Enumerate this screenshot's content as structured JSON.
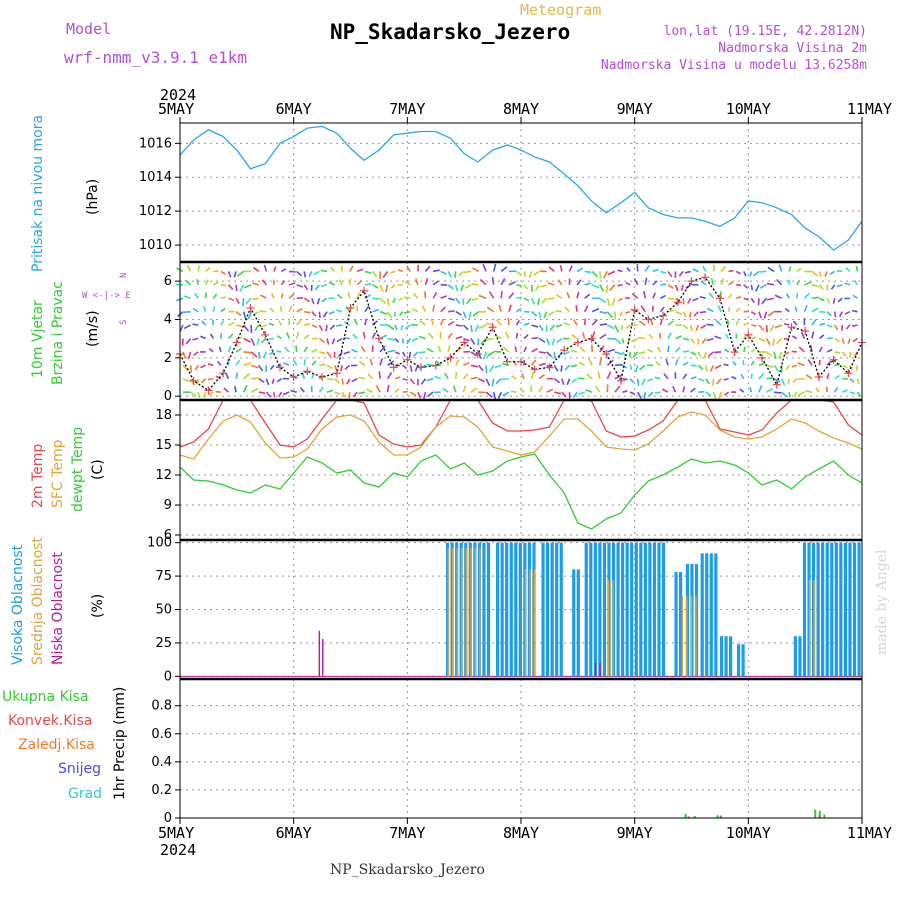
{
  "header": {
    "model_label": "Model",
    "model_name": "wrf-nmm_v3.9.1 e1km",
    "subtitle": "Meteogram",
    "title": "NP_Skadarsko_Jezero",
    "lonlat": "lon,lat (19.15E, 42.2812N)",
    "elev": "Nadmorska Visina 2m",
    "model_elev": "Nadmorska Visina u modelu 13.6258m",
    "footer": "NP_Skadarsko_Jezero",
    "watermark": "made by Angel"
  },
  "axes": {
    "year": "2024",
    "day_labels": [
      "5MAY",
      "6MAY",
      "7MAY",
      "8MAY",
      "9MAY",
      "10MAY",
      "11MAY"
    ]
  },
  "panels": {
    "pressure": {
      "label": "Pritisak na nivou mora",
      "unit": "(hPa)"
    },
    "wind": {
      "label1": "10m Vjetar",
      "label2": "Brzina i Pravac",
      "unit": "(m/s)",
      "compass": "W <-|-> E  N  S"
    },
    "temp": {
      "label1": "2m Temp",
      "label2": "SFC Temp",
      "label3": "dewpt Temp",
      "unit": "(C)"
    },
    "cloud": {
      "label1": "Visoka Oblacnost",
      "label2": "Srednja Oblacnost",
      "label3": "Niska Oblacnost",
      "unit": "(%)"
    },
    "precip": {
      "unit": "1hr Precip (mm)",
      "legend": [
        "Ukupna Kisa",
        "Konvek.Kisa",
        "Zaledj.Kisa",
        "Snijeg",
        "Grad"
      ]
    }
  },
  "colors": {
    "pressure": "#2aa8e6",
    "t2m": "#e8484a",
    "tsfc": "#e0a63a",
    "dewpt": "#33cc33",
    "high_cloud": "#1e9de6",
    "mid_cloud": "#d9a640",
    "low_cloud": "#b01c9c",
    "rain_total": "#33cc33",
    "rain_conv": "#e8484a",
    "rain_freez": "#f07a2a",
    "snow": "#4a4ae6",
    "hail": "#33cccc"
  },
  "chart_data": [
    {
      "type": "line",
      "ylabel": "(hPa)",
      "ylim": [
        1009,
        1017.2
      ],
      "yticks": [
        1010,
        1012,
        1014,
        1016
      ],
      "x_unit": "days since 5MAY 00UTC",
      "series": [
        {
          "name": "Pritisak na nivou mora",
          "x": [
            0,
            0.12,
            0.25,
            0.38,
            0.5,
            0.62,
            0.75,
            0.88,
            1.0,
            1.12,
            1.25,
            1.38,
            1.5,
            1.62,
            1.75,
            1.88,
            2.0,
            2.12,
            2.25,
            2.38,
            2.5,
            2.62,
            2.75,
            2.88,
            3.0,
            3.12,
            3.25,
            3.38,
            3.5,
            3.62,
            3.75,
            3.88,
            4.0,
            4.12,
            4.25,
            4.38,
            4.5,
            4.62,
            4.75,
            4.88,
            5.0,
            5.12,
            5.25,
            5.38,
            5.5,
            5.62,
            5.75,
            5.88,
            6.0
          ],
          "values": [
            1015.3,
            1016.2,
            1016.8,
            1016.4,
            1015.6,
            1014.5,
            1014.8,
            1016.0,
            1016.4,
            1016.9,
            1017.0,
            1016.6,
            1015.7,
            1015.0,
            1015.6,
            1016.5,
            1016.6,
            1016.7,
            1016.7,
            1016.3,
            1015.4,
            1014.9,
            1015.6,
            1015.9,
            1015.6,
            1015.2,
            1014.9,
            1014.2,
            1013.5,
            1012.6,
            1011.9,
            1012.5,
            1013.1,
            1012.2,
            1011.8,
            1011.6,
            1011.6,
            1011.4,
            1011.1,
            1011.6,
            1012.6,
            1012.5,
            1012.2,
            1011.8,
            1011.0,
            1010.5,
            1009.7,
            1010.3,
            1011.4
          ]
        }
      ]
    },
    {
      "type": "line",
      "ylabel": "(m/s)",
      "ylim": [
        -0.2,
        7
      ],
      "yticks": [
        0,
        2,
        4,
        6
      ],
      "series": [
        {
          "name": "10m Vjetar Brzina",
          "x": [
            0,
            0.12,
            0.25,
            0.38,
            0.5,
            0.62,
            0.75,
            0.88,
            1.0,
            1.12,
            1.25,
            1.38,
            1.5,
            1.62,
            1.75,
            1.88,
            2.0,
            2.12,
            2.25,
            2.38,
            2.5,
            2.62,
            2.75,
            2.88,
            3.0,
            3.12,
            3.25,
            3.38,
            3.5,
            3.62,
            3.75,
            3.88,
            4.0,
            4.12,
            4.25,
            4.38,
            4.5,
            4.62,
            4.75,
            4.88,
            5.0,
            5.12,
            5.25,
            5.38,
            5.5,
            5.62,
            5.75,
            5.88,
            6.0
          ],
          "values": [
            2.2,
            0.8,
            0.3,
            1.2,
            2.8,
            4.6,
            3.2,
            1.5,
            1.0,
            1.3,
            1.0,
            1.2,
            4.6,
            5.5,
            3.0,
            1.5,
            1.9,
            1.5,
            1.6,
            2.0,
            2.8,
            2.2,
            3.6,
            1.8,
            1.8,
            1.4,
            1.5,
            2.4,
            2.8,
            3.0,
            2.2,
            0.8,
            4.5,
            4.0,
            4.2,
            4.9,
            6.0,
            6.2,
            5.1,
            2.3,
            3.2,
            2.0,
            0.6,
            3.6,
            3.4,
            1.0,
            1.9,
            1.2,
            2.8
          ]
        }
      ]
    },
    {
      "type": "line",
      "ylabel": "(C)",
      "ylim": [
        5.5,
        19.5
      ],
      "yticks": [
        6,
        9,
        12,
        15,
        18
      ],
      "series": [
        {
          "name": "2m Temp",
          "x": [
            0,
            0.12,
            0.25,
            0.38,
            0.5,
            0.62,
            0.75,
            0.88,
            1.0,
            1.12,
            1.25,
            1.38,
            1.5,
            1.62,
            1.75,
            1.88,
            2.0,
            2.12,
            2.25,
            2.38,
            2.5,
            2.62,
            2.75,
            2.88,
            3.0,
            3.12,
            3.25,
            3.38,
            3.5,
            3.62,
            3.75,
            3.88,
            4.0,
            4.12,
            4.25,
            4.38,
            4.5,
            4.62,
            4.75,
            4.88,
            5.0,
            5.12,
            5.25,
            5.38,
            5.5,
            5.62,
            5.75,
            5.88,
            6.0
          ],
          "values": [
            14.8,
            15.3,
            16.6,
            19.5,
            20.0,
            19.5,
            17.2,
            15.0,
            14.8,
            15.6,
            17.6,
            19.6,
            20.0,
            19.2,
            16.0,
            15.1,
            14.8,
            15.0,
            16.8,
            19.6,
            20.0,
            19.5,
            17.2,
            16.4,
            16.4,
            16.5,
            16.8,
            19.5,
            20.0,
            19.4,
            16.4,
            15.8,
            15.9,
            16.5,
            17.4,
            19.5,
            20.0,
            19.5,
            16.6,
            16.3,
            16.0,
            16.5,
            18.2,
            19.6,
            20.0,
            19.8,
            19.3,
            17.0,
            16.0
          ]
        },
        {
          "name": "SFC Temp",
          "x": [
            0,
            0.12,
            0.25,
            0.38,
            0.5,
            0.62,
            0.75,
            0.88,
            1.0,
            1.12,
            1.25,
            1.38,
            1.5,
            1.62,
            1.75,
            1.88,
            2.0,
            2.12,
            2.25,
            2.38,
            2.5,
            2.62,
            2.75,
            2.88,
            3.0,
            3.12,
            3.25,
            3.38,
            3.5,
            3.62,
            3.75,
            3.88,
            4.0,
            4.12,
            4.25,
            4.38,
            4.5,
            4.62,
            4.75,
            4.88,
            5.0,
            5.12,
            5.25,
            5.38,
            5.5,
            5.62,
            5.75,
            5.88,
            6.0
          ],
          "values": [
            14.0,
            13.6,
            15.6,
            17.4,
            18.0,
            17.3,
            15.2,
            13.7,
            13.8,
            14.6,
            16.6,
            17.8,
            18.0,
            17.4,
            15.3,
            14.0,
            14.0,
            14.8,
            16.8,
            17.9,
            17.8,
            16.8,
            14.8,
            14.4,
            14.0,
            14.3,
            15.9,
            17.6,
            17.6,
            16.4,
            14.8,
            14.6,
            14.5,
            15.1,
            16.4,
            17.8,
            18.3,
            18.0,
            16.5,
            15.8,
            15.6,
            15.8,
            16.6,
            17.6,
            17.2,
            16.4,
            15.7,
            15.2,
            14.6
          ]
        },
        {
          "name": "dewpt Temp",
          "x": [
            0,
            0.12,
            0.25,
            0.38,
            0.5,
            0.62,
            0.75,
            0.88,
            1.0,
            1.12,
            1.25,
            1.38,
            1.5,
            1.62,
            1.75,
            1.88,
            2.0,
            2.12,
            2.25,
            2.38,
            2.5,
            2.62,
            2.75,
            2.88,
            3.0,
            3.12,
            3.25,
            3.38,
            3.5,
            3.62,
            3.75,
            3.88,
            4.0,
            4.12,
            4.25,
            4.38,
            4.5,
            4.62,
            4.75,
            4.88,
            5.0,
            5.12,
            5.25,
            5.38,
            5.5,
            5.62,
            5.75,
            5.88,
            6.0
          ],
          "values": [
            12.8,
            11.5,
            11.4,
            11.0,
            10.5,
            10.2,
            11.0,
            10.6,
            12.2,
            13.8,
            13.2,
            12.2,
            12.5,
            11.2,
            10.8,
            12.2,
            11.8,
            13.4,
            14.0,
            12.6,
            13.2,
            12.0,
            12.4,
            13.4,
            13.8,
            14.1,
            12.0,
            10.2,
            7.2,
            6.6,
            7.6,
            8.2,
            10.0,
            11.4,
            12.0,
            12.8,
            13.6,
            13.2,
            13.4,
            13.0,
            12.2,
            11.0,
            11.5,
            10.6,
            11.8,
            12.6,
            13.4,
            12.0,
            11.2
          ]
        }
      ]
    },
    {
      "type": "bar",
      "ylabel": "(%)",
      "ylim": [
        -2,
        102
      ],
      "yticks": [
        0,
        25,
        50,
        75,
        100
      ],
      "series": [
        {
          "name": "Visoka Oblacnost",
          "segments": [
            [
              2.34,
              2.7,
              100
            ],
            [
              2.78,
              3.1,
              100
            ],
            [
              3.18,
              3.35,
              100
            ],
            [
              3.45,
              3.52,
              80
            ],
            [
              3.56,
              4.25,
              100
            ],
            [
              4.35,
              4.4,
              78
            ],
            [
              4.45,
              4.55,
              84
            ],
            [
              4.58,
              4.7,
              92
            ],
            [
              4.75,
              4.85,
              30
            ],
            [
              4.9,
              4.95,
              24
            ],
            [
              5.4,
              5.45,
              30
            ],
            [
              5.48,
              5.98,
              100
            ]
          ]
        },
        {
          "name": "Srednja Oblacnost",
          "segments": [
            [
              2.34,
              2.62,
              96
            ],
            [
              3.02,
              3.12,
              80
            ],
            [
              3.75,
              3.8,
              72
            ],
            [
              4.4,
              4.55,
              60
            ],
            [
              5.52,
              5.58,
              72
            ]
          ]
        },
        {
          "name": "Niska Oblacnost",
          "segments": [
            [
              1.22,
              1.24,
              34
            ],
            [
              1.25,
              1.27,
              28
            ],
            [
              3.65,
              3.7,
              10
            ]
          ]
        }
      ]
    },
    {
      "type": "bar",
      "ylabel": "1hr Precip (mm)",
      "ylim": [
        0,
        0.99
      ],
      "yticks": [
        0,
        0.2,
        0.4,
        0.6,
        0.8
      ],
      "series": [
        {
          "name": "Ukupna Kisa",
          "x": [
            4.44,
            4.52,
            4.72,
            4.75,
            5.58,
            5.62,
            5.66
          ],
          "values": [
            0.03,
            0.015,
            0.02,
            0.018,
            0.06,
            0.05,
            0.025
          ]
        },
        {
          "name": "Konvek.Kisa",
          "x": [
            4.45,
            4.73,
            5.6
          ],
          "values": [
            0.01,
            0.01,
            0.02
          ]
        }
      ]
    }
  ]
}
